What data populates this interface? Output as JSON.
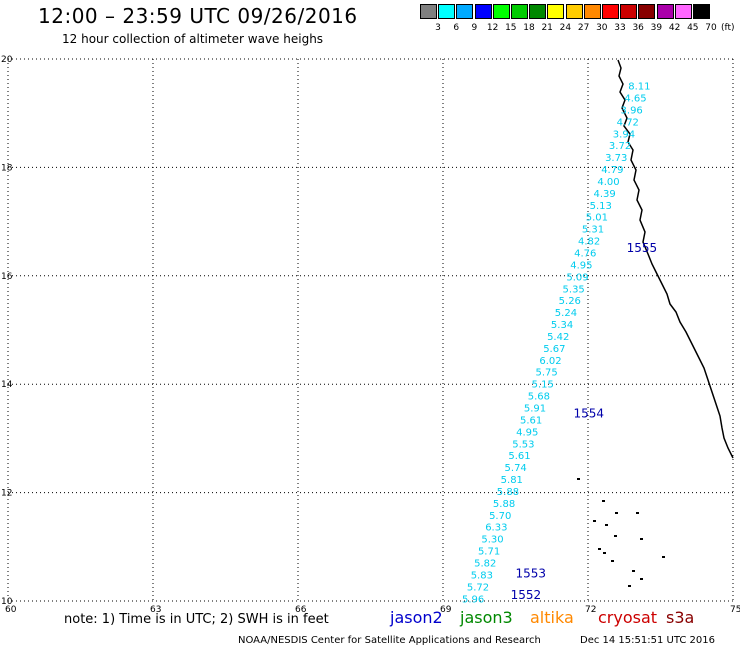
{
  "header": {
    "title": "12:00 – 23:59 UTC 09/26/2016",
    "subtitle": "12 hour collection of altimeter wave heighs"
  },
  "legend": {
    "unit": "(ft)",
    "bins": [
      {
        "label": "3",
        "color": "#808080"
      },
      {
        "label": "6",
        "color": "#00ffff"
      },
      {
        "label": "9",
        "color": "#00aaff"
      },
      {
        "label": "12",
        "color": "#0000ff"
      },
      {
        "label": "15",
        "color": "#00ff00"
      },
      {
        "label": "18",
        "color": "#00cc00"
      },
      {
        "label": "21",
        "color": "#008800"
      },
      {
        "label": "24",
        "color": "#ffff00"
      },
      {
        "label": "27",
        "color": "#ffcc00"
      },
      {
        "label": "30",
        "color": "#ff8800"
      },
      {
        "label": "33",
        "color": "#ff0000"
      },
      {
        "label": "36",
        "color": "#cc0000"
      },
      {
        "label": "39",
        "color": "#880000"
      },
      {
        "label": "42",
        "color": "#aa00aa"
      },
      {
        "label": "45",
        "color": "#ff66ff"
      },
      {
        "label": "70",
        "color": "#000000"
      }
    ]
  },
  "map": {
    "lon_range": [
      60,
      75
    ],
    "lat_range": [
      10,
      20
    ],
    "lon_ticks": [
      "60",
      "63",
      "66",
      "69",
      "72",
      "75"
    ],
    "lat_ticks": [
      "10",
      "12",
      "14",
      "16",
      "18",
      "20"
    ],
    "grid": "dotted",
    "track_color": "#00ccee",
    "pass_color": "#0000aa",
    "coast_color": "#000000"
  },
  "passes": [
    {
      "label": "1552",
      "lon": 70.4,
      "lat": 10.0
    },
    {
      "label": "1553",
      "lon": 70.5,
      "lat": 10.4
    },
    {
      "label": "1554",
      "lon": 71.7,
      "lat": 13.35
    },
    {
      "label": "1555",
      "lon": 72.8,
      "lat": 16.4
    }
  ],
  "swh_values": [
    {
      "v": "5.96",
      "lon": 69.6,
      "lat": 10.05
    },
    {
      "v": "5.72",
      "lon": 69.7,
      "lat": 10.27
    },
    {
      "v": "5.83",
      "lon": 69.78,
      "lat": 10.49
    },
    {
      "v": "5.82",
      "lon": 69.85,
      "lat": 10.71
    },
    {
      "v": "5.71",
      "lon": 69.93,
      "lat": 10.93
    },
    {
      "v": "5.30",
      "lon": 70.0,
      "lat": 11.15
    },
    {
      "v": "6.33",
      "lon": 70.08,
      "lat": 11.37
    },
    {
      "v": "5.70",
      "lon": 70.16,
      "lat": 11.59
    },
    {
      "v": "5.88",
      "lon": 70.24,
      "lat": 11.81
    },
    {
      "v": "5.88",
      "lon": 70.32,
      "lat": 12.03
    },
    {
      "v": "5.81",
      "lon": 70.4,
      "lat": 12.25
    },
    {
      "v": "5.74",
      "lon": 70.48,
      "lat": 12.47
    },
    {
      "v": "5.61",
      "lon": 70.56,
      "lat": 12.69
    },
    {
      "v": "5.53",
      "lon": 70.64,
      "lat": 12.91
    },
    {
      "v": "4.95",
      "lon": 70.72,
      "lat": 13.13
    },
    {
      "v": "5.61",
      "lon": 70.8,
      "lat": 13.35
    },
    {
      "v": "5.91",
      "lon": 70.88,
      "lat": 13.57
    },
    {
      "v": "5.68",
      "lon": 70.96,
      "lat": 13.79
    },
    {
      "v": "5.15",
      "lon": 71.04,
      "lat": 14.01
    },
    {
      "v": "5.75",
      "lon": 71.12,
      "lat": 14.23
    },
    {
      "v": "6.02",
      "lon": 71.2,
      "lat": 14.45
    },
    {
      "v": "5.67",
      "lon": 71.28,
      "lat": 14.67
    },
    {
      "v": "5.42",
      "lon": 71.36,
      "lat": 14.89
    },
    {
      "v": "5.34",
      "lon": 71.44,
      "lat": 15.11
    },
    {
      "v": "5.24",
      "lon": 71.52,
      "lat": 15.33
    },
    {
      "v": "5.26",
      "lon": 71.6,
      "lat": 15.55
    },
    {
      "v": "5.35",
      "lon": 71.68,
      "lat": 15.77
    },
    {
      "v": "5.09",
      "lon": 71.76,
      "lat": 15.99
    },
    {
      "v": "4.95",
      "lon": 71.84,
      "lat": 16.21
    },
    {
      "v": "4.76",
      "lon": 71.92,
      "lat": 16.43
    },
    {
      "v": "4.82",
      "lon": 72.0,
      "lat": 16.65
    },
    {
      "v": "5.31",
      "lon": 72.08,
      "lat": 16.87
    },
    {
      "v": "5.01",
      "lon": 72.16,
      "lat": 17.09
    },
    {
      "v": "5.13",
      "lon": 72.24,
      "lat": 17.31
    },
    {
      "v": "4.39",
      "lon": 72.32,
      "lat": 17.53
    },
    {
      "v": "4.00",
      "lon": 72.4,
      "lat": 17.75
    },
    {
      "v": "4.79",
      "lon": 72.48,
      "lat": 17.97
    },
    {
      "v": "3.73",
      "lon": 72.56,
      "lat": 18.19
    },
    {
      "v": "3.72",
      "lon": 72.64,
      "lat": 18.41
    },
    {
      "v": "3.94",
      "lon": 72.72,
      "lat": 18.63
    },
    {
      "v": "4.72",
      "lon": 72.8,
      "lat": 18.85
    },
    {
      "v": "3.96",
      "lon": 72.88,
      "lat": 19.07
    },
    {
      "v": "4.65",
      "lon": 72.96,
      "lat": 19.29
    },
    {
      "v": "8.11",
      "lon": 73.04,
      "lat": 19.51
    }
  ],
  "footer": {
    "note": "note:  1) Time is in UTC;  2) SWH is in feet",
    "satellites": [
      {
        "name": "jason2",
        "color": "#0000cc"
      },
      {
        "name": "jason3",
        "color": "#008800"
      },
      {
        "name": "altika",
        "color": "#ff8800"
      },
      {
        "name": "cryosat",
        "color": "#cc0000"
      },
      {
        "name": "s3a",
        "color": "#880000"
      }
    ],
    "credit": "NOAA/NESDIS Center for Satellite Applications and Research",
    "timestamp": "Dec 14 15:51:51 UTC 2016"
  }
}
